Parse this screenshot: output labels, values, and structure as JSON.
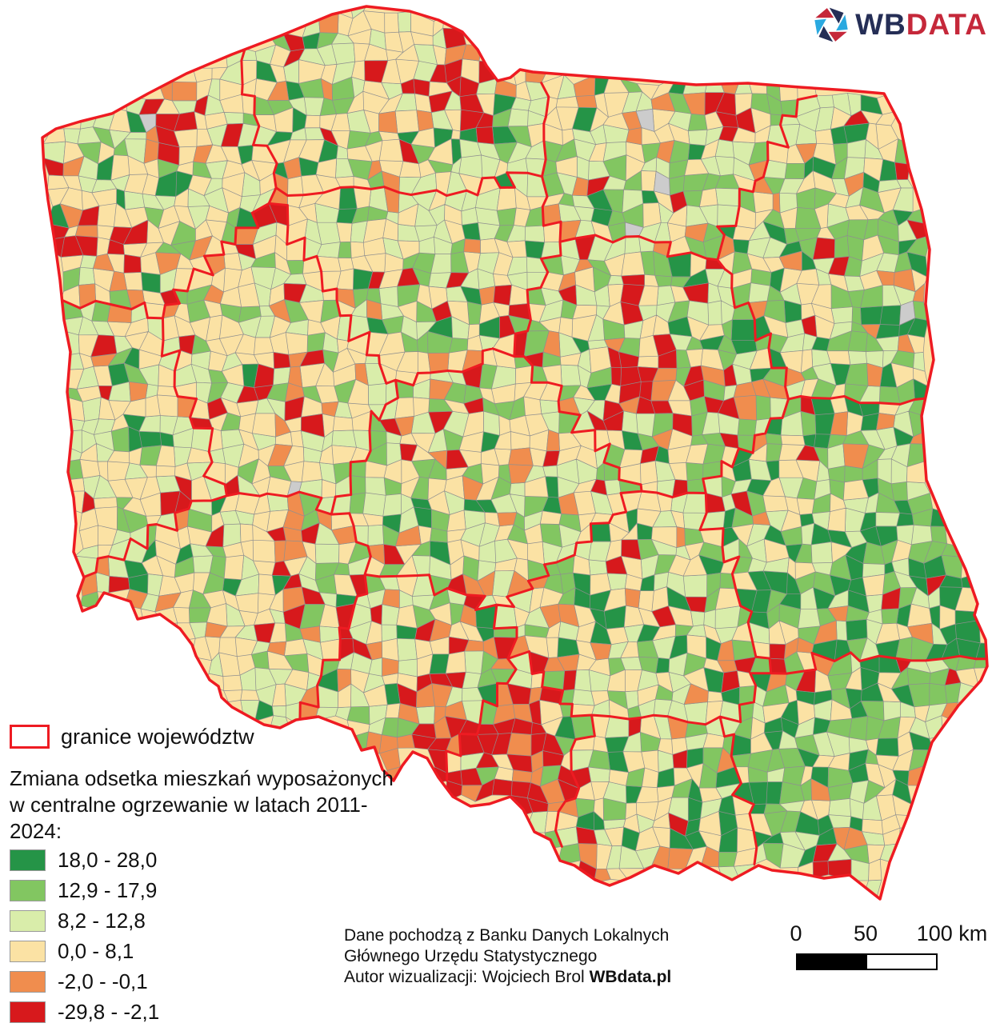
{
  "logo": {
    "icon": "aperture-icon",
    "part1": "WB",
    "part2": "DATA",
    "part1_color": "#252e56",
    "part2_color": "#c5283a",
    "icon_colors": [
      "#252e56",
      "#2aa9e0",
      "#c5283a"
    ]
  },
  "map": {
    "type": "choropleth",
    "region": "Poland, municipalities (gminy)",
    "border_legend_label": "granice województw",
    "voivodeship_border_color": "#ee1b22",
    "municipal_border_color": "#8f8f8f",
    "no_data_color": "#cccccc",
    "background_color": "#ffffff"
  },
  "legend": {
    "title_line1": "Zmiana odsetka mieszkań wyposażonych",
    "title_line2": "w centralne ogrzewanie w latach 2011-2024:",
    "items": [
      {
        "label": "18,0 - 28,0",
        "color": "#259447",
        "range_min": 18.0,
        "range_max": 28.0
      },
      {
        "label": "12,9 - 17,9",
        "color": "#82c661",
        "range_min": 12.9,
        "range_max": 17.9
      },
      {
        "label": "8,2 - 12,8",
        "color": "#d9edaa",
        "range_min": 8.2,
        "range_max": 12.8
      },
      {
        "label": "0,0 - 8,1",
        "color": "#fbe2a4",
        "range_min": 0.0,
        "range_max": 8.1
      },
      {
        "label": "-2,0 - -0,1",
        "color": "#f08d4e",
        "range_min": -2.0,
        "range_max": -0.1
      },
      {
        "label": "-29,8 - -2,1",
        "color": "#d7191c",
        "range_min": -29.8,
        "range_max": -2.1
      }
    ]
  },
  "attribution": {
    "line1": "Dane pochodzą z Banku Danych Lokalnych",
    "line2": "Głównego Urzędu Statystycznego",
    "line3_prefix": "Autor wizualizacji: Wojciech Brol ",
    "line3_bold": "WBdata.pl"
  },
  "scalebar": {
    "tick0": "0",
    "tick1": "50",
    "tick2": "100 km"
  }
}
